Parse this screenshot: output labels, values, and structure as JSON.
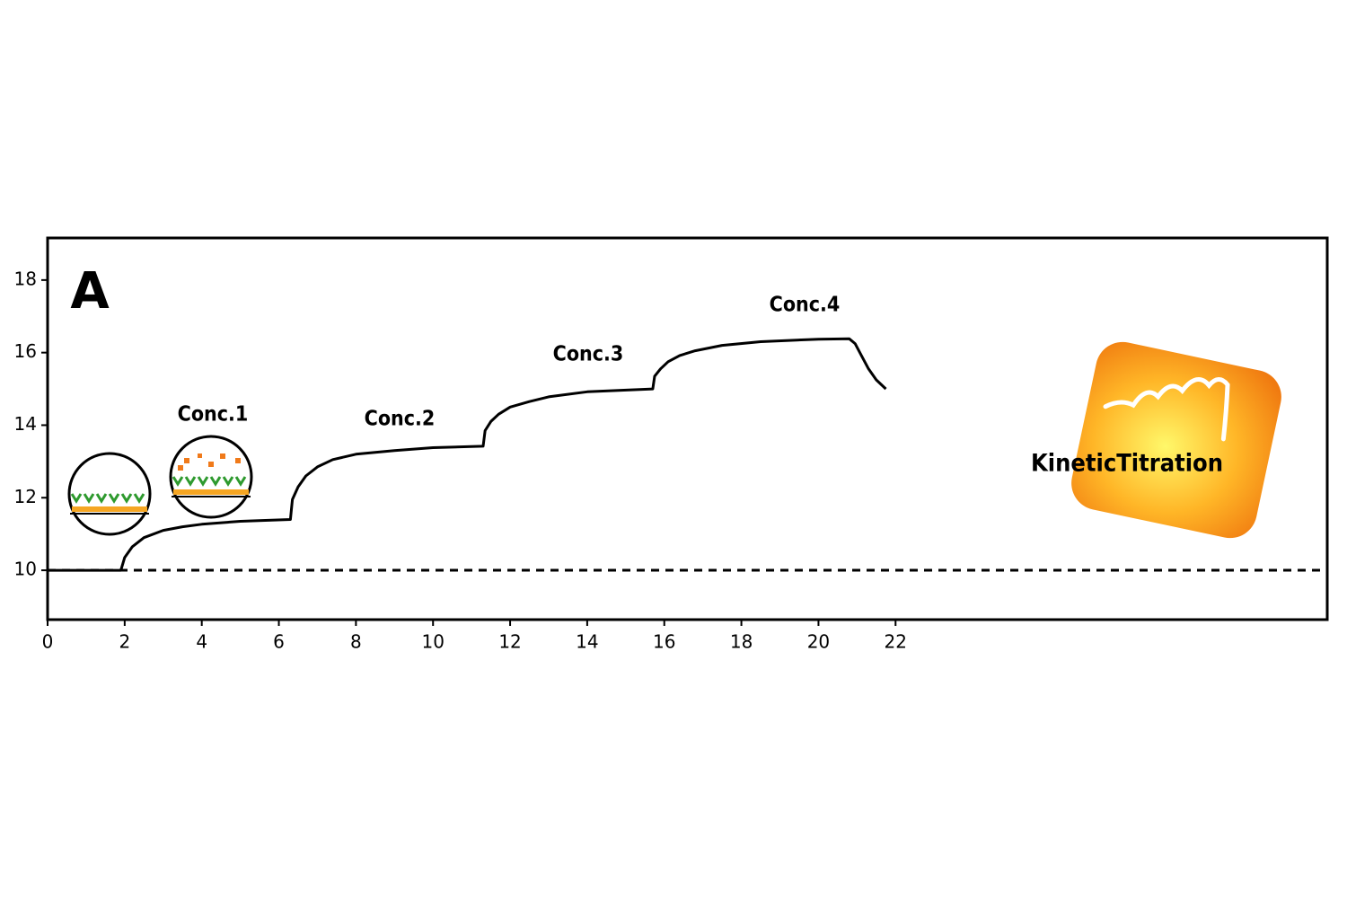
{
  "chart_data": {
    "type": "line",
    "panel_label": "A",
    "annotations": [
      "Conc.1",
      "Conc.2",
      "Conc.3",
      "Conc.4"
    ],
    "logo_text": "KineticTitration",
    "x": [
      0,
      1.9,
      2.0,
      2.2,
      2.5,
      3,
      3.5,
      4,
      5,
      6.3,
      6.35,
      6.5,
      6.7,
      7.0,
      7.4,
      8,
      9,
      10,
      11.3,
      11.35,
      11.5,
      11.7,
      12.0,
      12.5,
      13,
      14,
      15.7,
      15.75,
      15.9,
      16.1,
      16.4,
      16.8,
      17.5,
      18.5,
      20,
      20.8,
      20.95,
      21.1,
      21.3,
      21.5,
      21.75
    ],
    "values": [
      10,
      10,
      10.35,
      10.65,
      10.9,
      11.1,
      11.2,
      11.27,
      11.35,
      11.4,
      11.95,
      12.3,
      12.6,
      12.85,
      13.05,
      13.2,
      13.3,
      13.38,
      13.42,
      13.85,
      14.1,
      14.3,
      14.5,
      14.65,
      14.78,
      14.92,
      15.0,
      15.35,
      15.55,
      15.75,
      15.92,
      16.05,
      16.2,
      16.3,
      16.37,
      16.38,
      16.25,
      15.95,
      15.55,
      15.25,
      15.0
    ],
    "color": "#000000",
    "baseline": 10,
    "xlim": [
      0,
      33.2
    ],
    "ylim": [
      8.64,
      19.16
    ],
    "xticks": [
      0,
      2,
      4,
      6,
      8,
      10,
      12,
      14,
      16,
      18,
      20,
      22
    ],
    "yticks": [
      10,
      12,
      14,
      16,
      18
    ],
    "grid": false
  }
}
